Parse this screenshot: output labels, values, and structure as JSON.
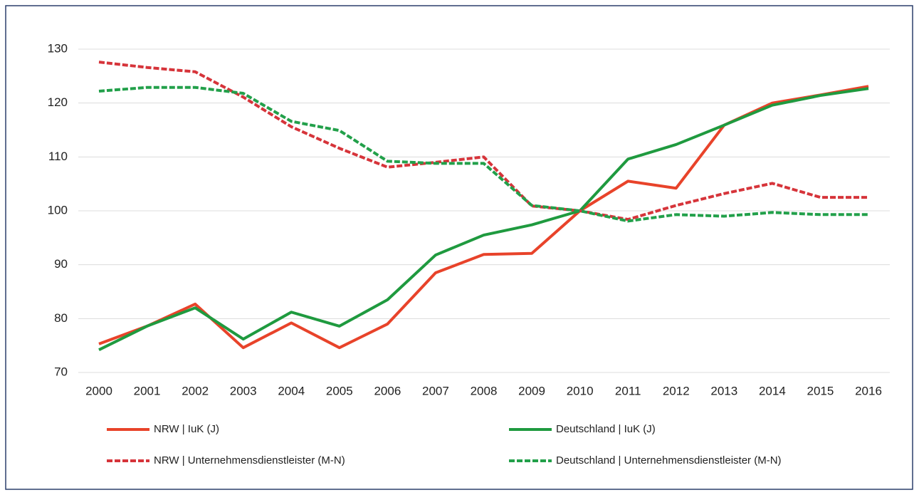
{
  "chart_data": {
    "type": "line",
    "categories": [
      "2000",
      "2001",
      "2002",
      "2003",
      "2004",
      "2005",
      "2006",
      "2007",
      "2008",
      "2009",
      "2010",
      "2011",
      "2012",
      "2013",
      "2014",
      "2015",
      "2016"
    ],
    "series": [
      {
        "name": "NRW | IuK (J)",
        "color": "#e8432a",
        "dash": false,
        "values": [
          75.3,
          78.6,
          82.7,
          74.6,
          79.2,
          74.6,
          79.0,
          88.5,
          91.9,
          92.1,
          100,
          105.5,
          104.2,
          115.9,
          120.0,
          121.5,
          123.1
        ]
      },
      {
        "name": "Deutschland | IuK (J)",
        "color": "#1f9a3f",
        "dash": false,
        "values": [
          74.2,
          78.6,
          82.0,
          76.2,
          81.2,
          78.6,
          83.5,
          91.8,
          95.5,
          97.4,
          100,
          109.6,
          112.3,
          115.9,
          119.6,
          121.4,
          122.7
        ]
      },
      {
        "name": "NRW | Unternehmensdienstleister (M-N)",
        "color": "#d6343a",
        "dash": true,
        "values": [
          127.6,
          126.6,
          125.8,
          121.1,
          115.6,
          111.6,
          108.1,
          109.0,
          110.0,
          100.9,
          100,
          98.4,
          101.0,
          103.2,
          105.1,
          102.5,
          102.5
        ]
      },
      {
        "name": "Deutschland | Unternehmensdienstleister (M-N)",
        "color": "#22a04a",
        "dash": true,
        "values": [
          122.2,
          122.9,
          122.9,
          121.8,
          116.6,
          114.9,
          109.2,
          108.8,
          108.8,
          101.0,
          100,
          98.1,
          99.3,
          99.0,
          99.7,
          99.3,
          99.3
        ]
      }
    ],
    "ylim": [
      70,
      130
    ],
    "yticks": [
      70,
      80,
      90,
      100,
      110,
      120,
      130
    ],
    "grid": true
  }
}
